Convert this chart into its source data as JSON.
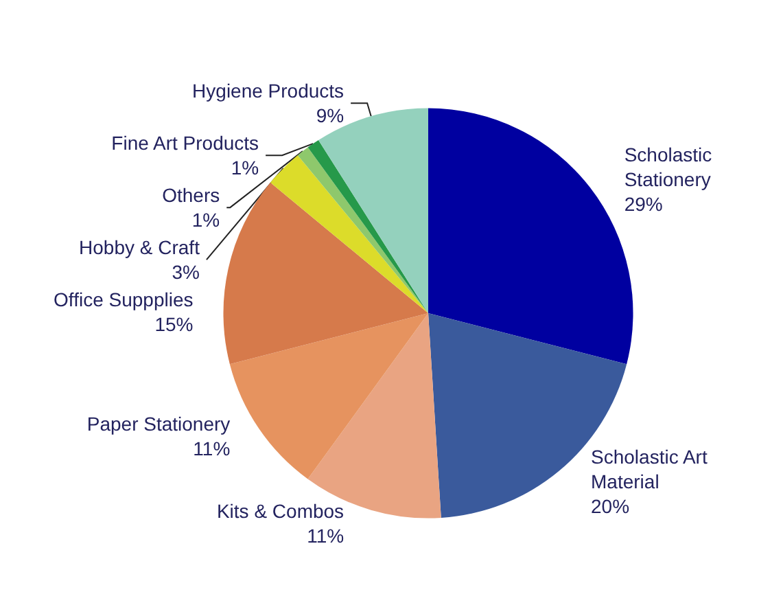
{
  "chart_data": {
    "type": "pie",
    "categories": [
      "Scholastic Stationery",
      "Scholastic Art Material",
      "Kits & Combos",
      "Paper Stationery",
      "Office Suppplies",
      "Hobby & Craft",
      "Others",
      "Fine Art Products",
      "Hygiene Products"
    ],
    "values": [
      29,
      20,
      11,
      11,
      15,
      3,
      1,
      1,
      9
    ],
    "value_labels": [
      "29%",
      "20%",
      "11%",
      "11%",
      "15%",
      "3%",
      "1%",
      "1%",
      "9%"
    ],
    "colors": [
      "#0000a0",
      "#3a5a9c",
      "#e9a482",
      "#e6935f",
      "#d67a4b",
      "#dcdc2a",
      "#8ec86c",
      "#26994a",
      "#94d1bd"
    ],
    "legend": false
  }
}
